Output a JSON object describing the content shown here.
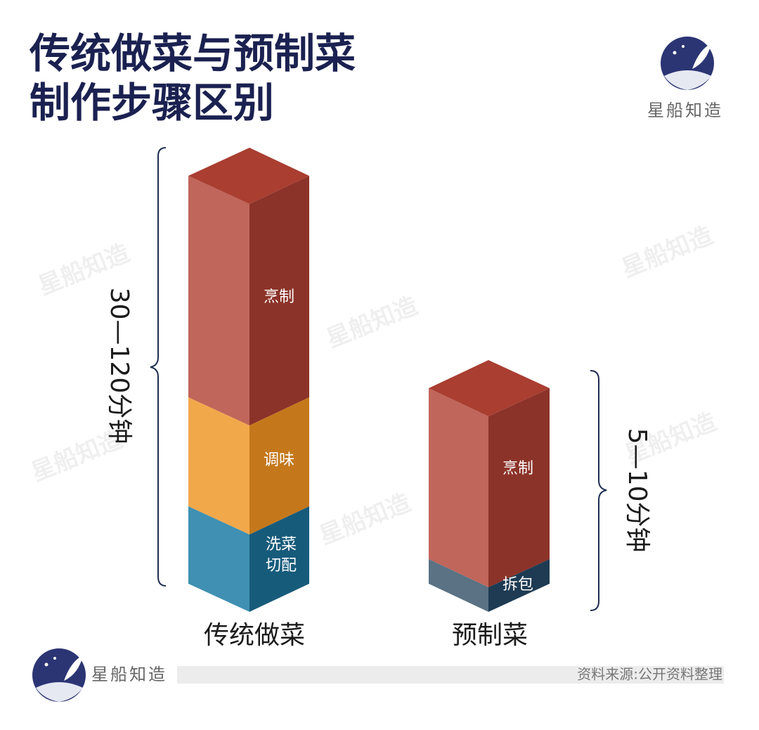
{
  "header": {
    "title_lines": [
      "传统做菜与预制菜",
      "制作步骤区别"
    ],
    "brand": "星船知造"
  },
  "columns": [
    {
      "label": "传统做菜",
      "duration": "30—120分钟",
      "steps": [
        [
          "烹制"
        ],
        [
          "调味"
        ],
        [
          "洗菜",
          "切配"
        ]
      ]
    },
    {
      "label": "预制菜",
      "duration": "5—10分钟",
      "steps": [
        [
          "烹制"
        ],
        [
          "拆包"
        ]
      ]
    }
  ],
  "footer": {
    "brand": "星船知造",
    "source": "资料来源:公开资料整理"
  }
}
